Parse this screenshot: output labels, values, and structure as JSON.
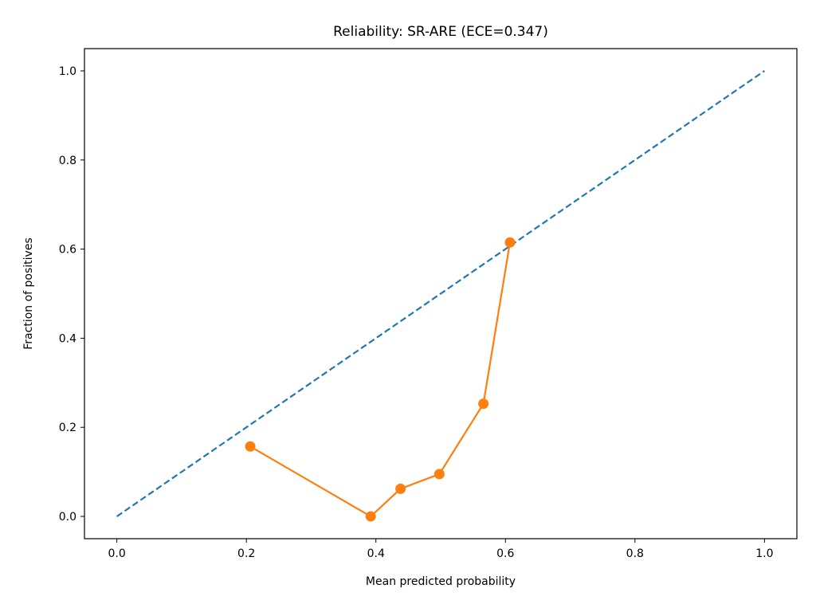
{
  "chart_data": {
    "type": "line",
    "title": "Reliability: SR-ARE (ECE=0.347)",
    "xlabel": "Mean predicted probability",
    "ylabel": "Fraction of positives",
    "xlim": [
      -0.05,
      1.05
    ],
    "ylim": [
      -0.05,
      1.05
    ],
    "xticks": [
      0.0,
      0.2,
      0.4,
      0.6,
      0.8,
      1.0
    ],
    "xtick_labels": [
      "0.0",
      "0.2",
      "0.4",
      "0.6",
      "0.8",
      "1.0"
    ],
    "yticks": [
      0.0,
      0.2,
      0.4,
      0.6,
      0.8,
      1.0
    ],
    "ytick_labels": [
      "0.0",
      "0.2",
      "0.4",
      "0.6",
      "0.8",
      "1.0"
    ],
    "grid": false,
    "legend": "none",
    "series": [
      {
        "style": "dashed",
        "color": "#1f77b4",
        "x": [
          0.0,
          1.0
        ],
        "y": [
          0.0,
          1.0
        ]
      },
      {
        "style": "line-marker",
        "color": "#ff7f0e",
        "x": [
          0.206,
          0.392,
          0.438,
          0.498,
          0.566,
          0.607
        ],
        "y": [
          0.157,
          0.0,
          0.062,
          0.095,
          0.253,
          0.615
        ]
      }
    ]
  }
}
